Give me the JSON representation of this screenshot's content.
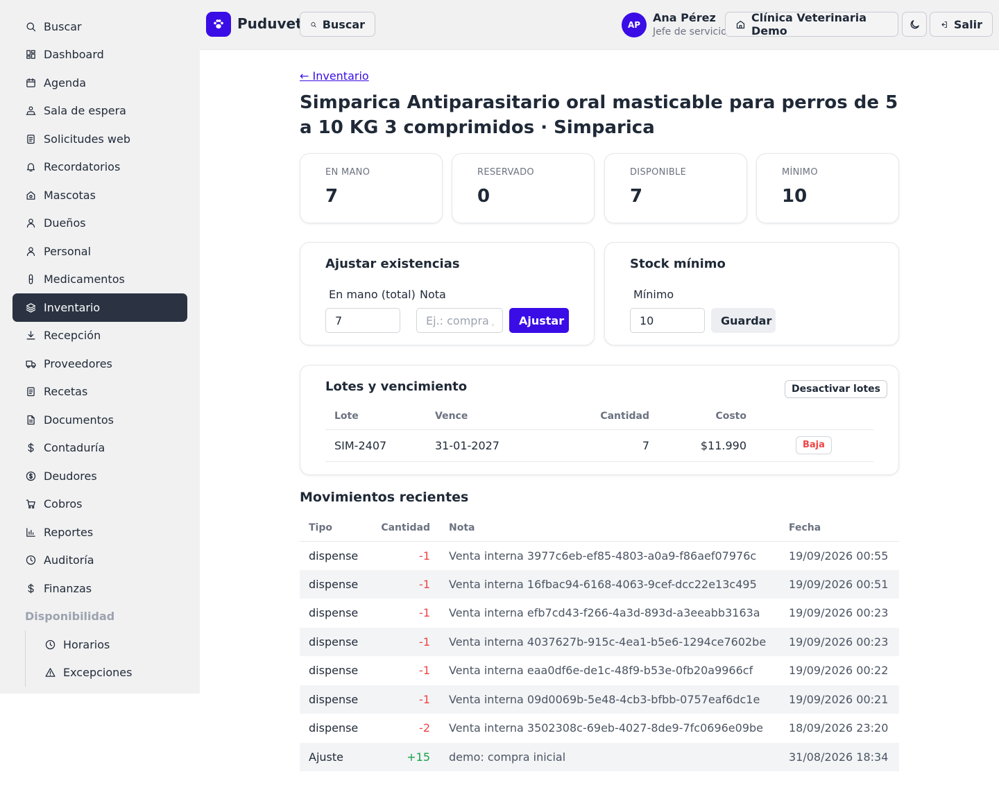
{
  "sidebar": {
    "items": [
      {
        "label": "Buscar",
        "icon": "search-icon"
      },
      {
        "label": "Dashboard",
        "icon": "dashboard-icon"
      },
      {
        "label": "Agenda",
        "icon": "calendar-icon"
      },
      {
        "label": "Sala de espera",
        "icon": "waiting-room-icon"
      },
      {
        "label": "Solicitudes web",
        "icon": "clipboard-icon"
      },
      {
        "label": "Recordatorios",
        "icon": "bell-icon"
      },
      {
        "label": "Mascotas",
        "icon": "pet-home-icon"
      },
      {
        "label": "Dueños",
        "icon": "user-icon"
      },
      {
        "label": "Personal",
        "icon": "user-icon"
      },
      {
        "label": "Medicamentos",
        "icon": "pill-icon"
      },
      {
        "label": "Inventario",
        "icon": "layers-icon",
        "active": true
      },
      {
        "label": "Recepción",
        "icon": "download-icon"
      },
      {
        "label": "Proveedores",
        "icon": "truck-icon"
      },
      {
        "label": "Recetas",
        "icon": "clipboard-icon"
      },
      {
        "label": "Documentos",
        "icon": "document-icon"
      },
      {
        "label": "Contaduría",
        "icon": "dollar-icon"
      },
      {
        "label": "Deudores",
        "icon": "dollar-circle-icon"
      },
      {
        "label": "Cobros",
        "icon": "cart-icon"
      },
      {
        "label": "Reportes",
        "icon": "bar-chart-icon"
      },
      {
        "label": "Auditoría",
        "icon": "clock-icon"
      },
      {
        "label": "Finanzas",
        "icon": "dollar-icon"
      }
    ],
    "section_label": "Disponibilidad",
    "sub_items": [
      {
        "label": "Horarios",
        "icon": "clock-icon"
      },
      {
        "label": "Excepciones",
        "icon": "warning-icon"
      }
    ]
  },
  "header": {
    "brand": "Puduvet",
    "search_label": "Buscar",
    "user_initials": "AP",
    "user_name": "Ana Pérez",
    "user_role": "Jefe de servicio",
    "clinic_label": "Clínica Veterinaria Demo",
    "logout_label": "Salir"
  },
  "page": {
    "back_label": "← Inventario",
    "title": "Simparica Antiparasitario oral masticable para perros de 5 a 10 KG 3 comprimidos · Simparica"
  },
  "stats": [
    {
      "label": "EN MANO",
      "value": "7"
    },
    {
      "label": "RESERVADO",
      "value": "0"
    },
    {
      "label": "DISPONIBLE",
      "value": "7"
    },
    {
      "label": "MÍNIMO",
      "value": "10"
    }
  ],
  "adjust": {
    "title": "Ajustar existencias",
    "total_label": "En mano (total)",
    "total_value": "7",
    "note_label": "Nota",
    "note_placeholder": "Ej.: compra / conteo",
    "button": "Ajustar"
  },
  "min_stock": {
    "title": "Stock mínimo",
    "label": "Mínimo",
    "value": "10",
    "button": "Guardar"
  },
  "lots": {
    "title": "Lotes y vencimiento",
    "deactivate_label": "Desactivar lotes",
    "columns": [
      "Lote",
      "Vence",
      "Cantidad",
      "Costo"
    ],
    "rows": [
      {
        "lot": "SIM-2407",
        "expires": "31-01-2027",
        "qty": "7",
        "cost": "$11.990",
        "action": "Baja"
      }
    ]
  },
  "movements": {
    "title": "Movimientos recientes",
    "columns": [
      "Tipo",
      "Cantidad",
      "Nota",
      "Fecha"
    ],
    "rows": [
      {
        "type": "dispense",
        "qty": "-1",
        "note": "Venta interna 3977c6eb-ef85-4803-a0a9-f86aef07976c",
        "date": "19/09/2026 00:55"
      },
      {
        "type": "dispense",
        "qty": "-1",
        "note": "Venta interna 16fbac94-6168-4063-9cef-dcc22e13c495",
        "date": "19/09/2026 00:51"
      },
      {
        "type": "dispense",
        "qty": "-1",
        "note": "Venta interna efb7cd43-f266-4a3d-893d-a3eeabb3163a",
        "date": "19/09/2026 00:23"
      },
      {
        "type": "dispense",
        "qty": "-1",
        "note": "Venta interna 4037627b-915c-4ea1-b5e6-1294ce7602be",
        "date": "19/09/2026 00:23"
      },
      {
        "type": "dispense",
        "qty": "-1",
        "note": "Venta interna eaa0df6e-de1c-48f9-b53e-0fb20a9966cf",
        "date": "19/09/2026 00:22"
      },
      {
        "type": "dispense",
        "qty": "-1",
        "note": "Venta interna 09d0069b-5e48-4cb3-bfbb-0757eaf6dc1e",
        "date": "19/09/2026 00:21"
      },
      {
        "type": "dispense",
        "qty": "-2",
        "note": "Venta interna 3502308c-69eb-4027-8de9-7fc0696e09be",
        "date": "18/09/2026 23:20"
      },
      {
        "type": "Ajuste",
        "qty": "+15",
        "note": "demo: compra inicial",
        "date": "31/08/2026 18:34"
      }
    ]
  },
  "colors": {
    "accent": "#3a0ce6",
    "sidebar_active": "#2b3342",
    "negative": "#ef4444",
    "positive": "#16a34a"
  }
}
